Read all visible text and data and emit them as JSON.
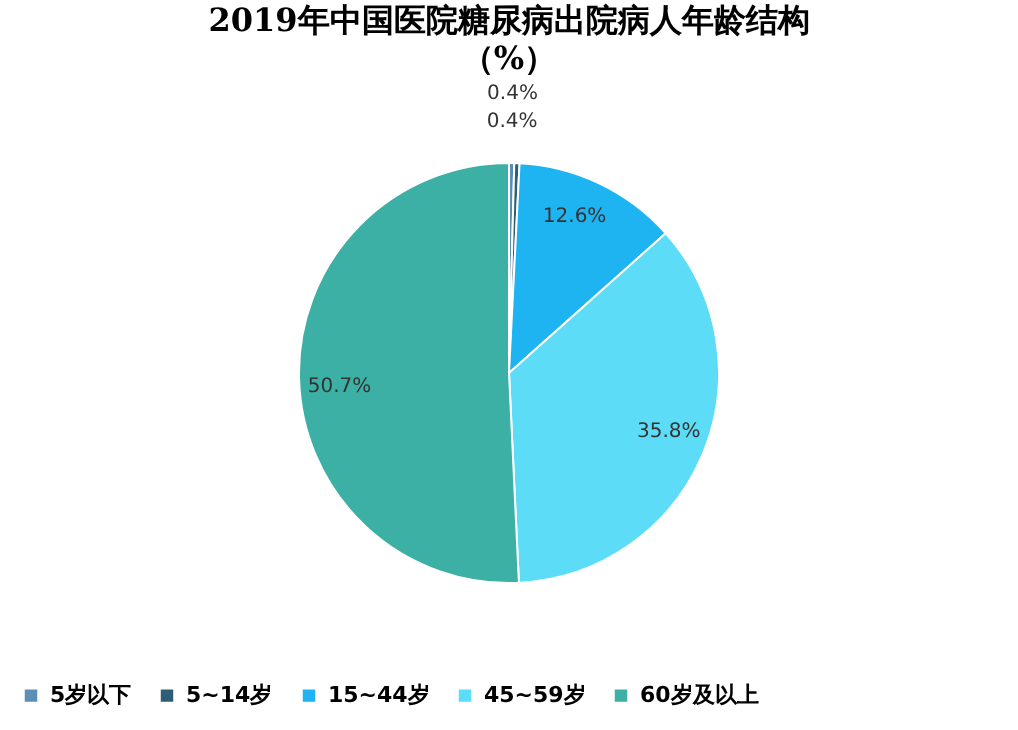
{
  "chart_data": {
    "type": "pie",
    "title": "2019年中国医院糖尿病出院病人年龄结构",
    "subtitle": "（%）",
    "categories": [
      "5岁以下",
      "5~14岁",
      "15~44岁",
      "45~59岁",
      "60岁及以上"
    ],
    "values": [
      0.4,
      0.4,
      12.6,
      35.8,
      50.7
    ],
    "colors": [
      "#5b8fb5",
      "#2f5d78",
      "#1eb4f2",
      "#5cdcf7",
      "#3cb0a4"
    ],
    "value_labels": [
      "0.4%",
      "0.4%",
      "12.6%",
      "35.8%",
      "50.7%"
    ],
    "legend": "bottom"
  }
}
